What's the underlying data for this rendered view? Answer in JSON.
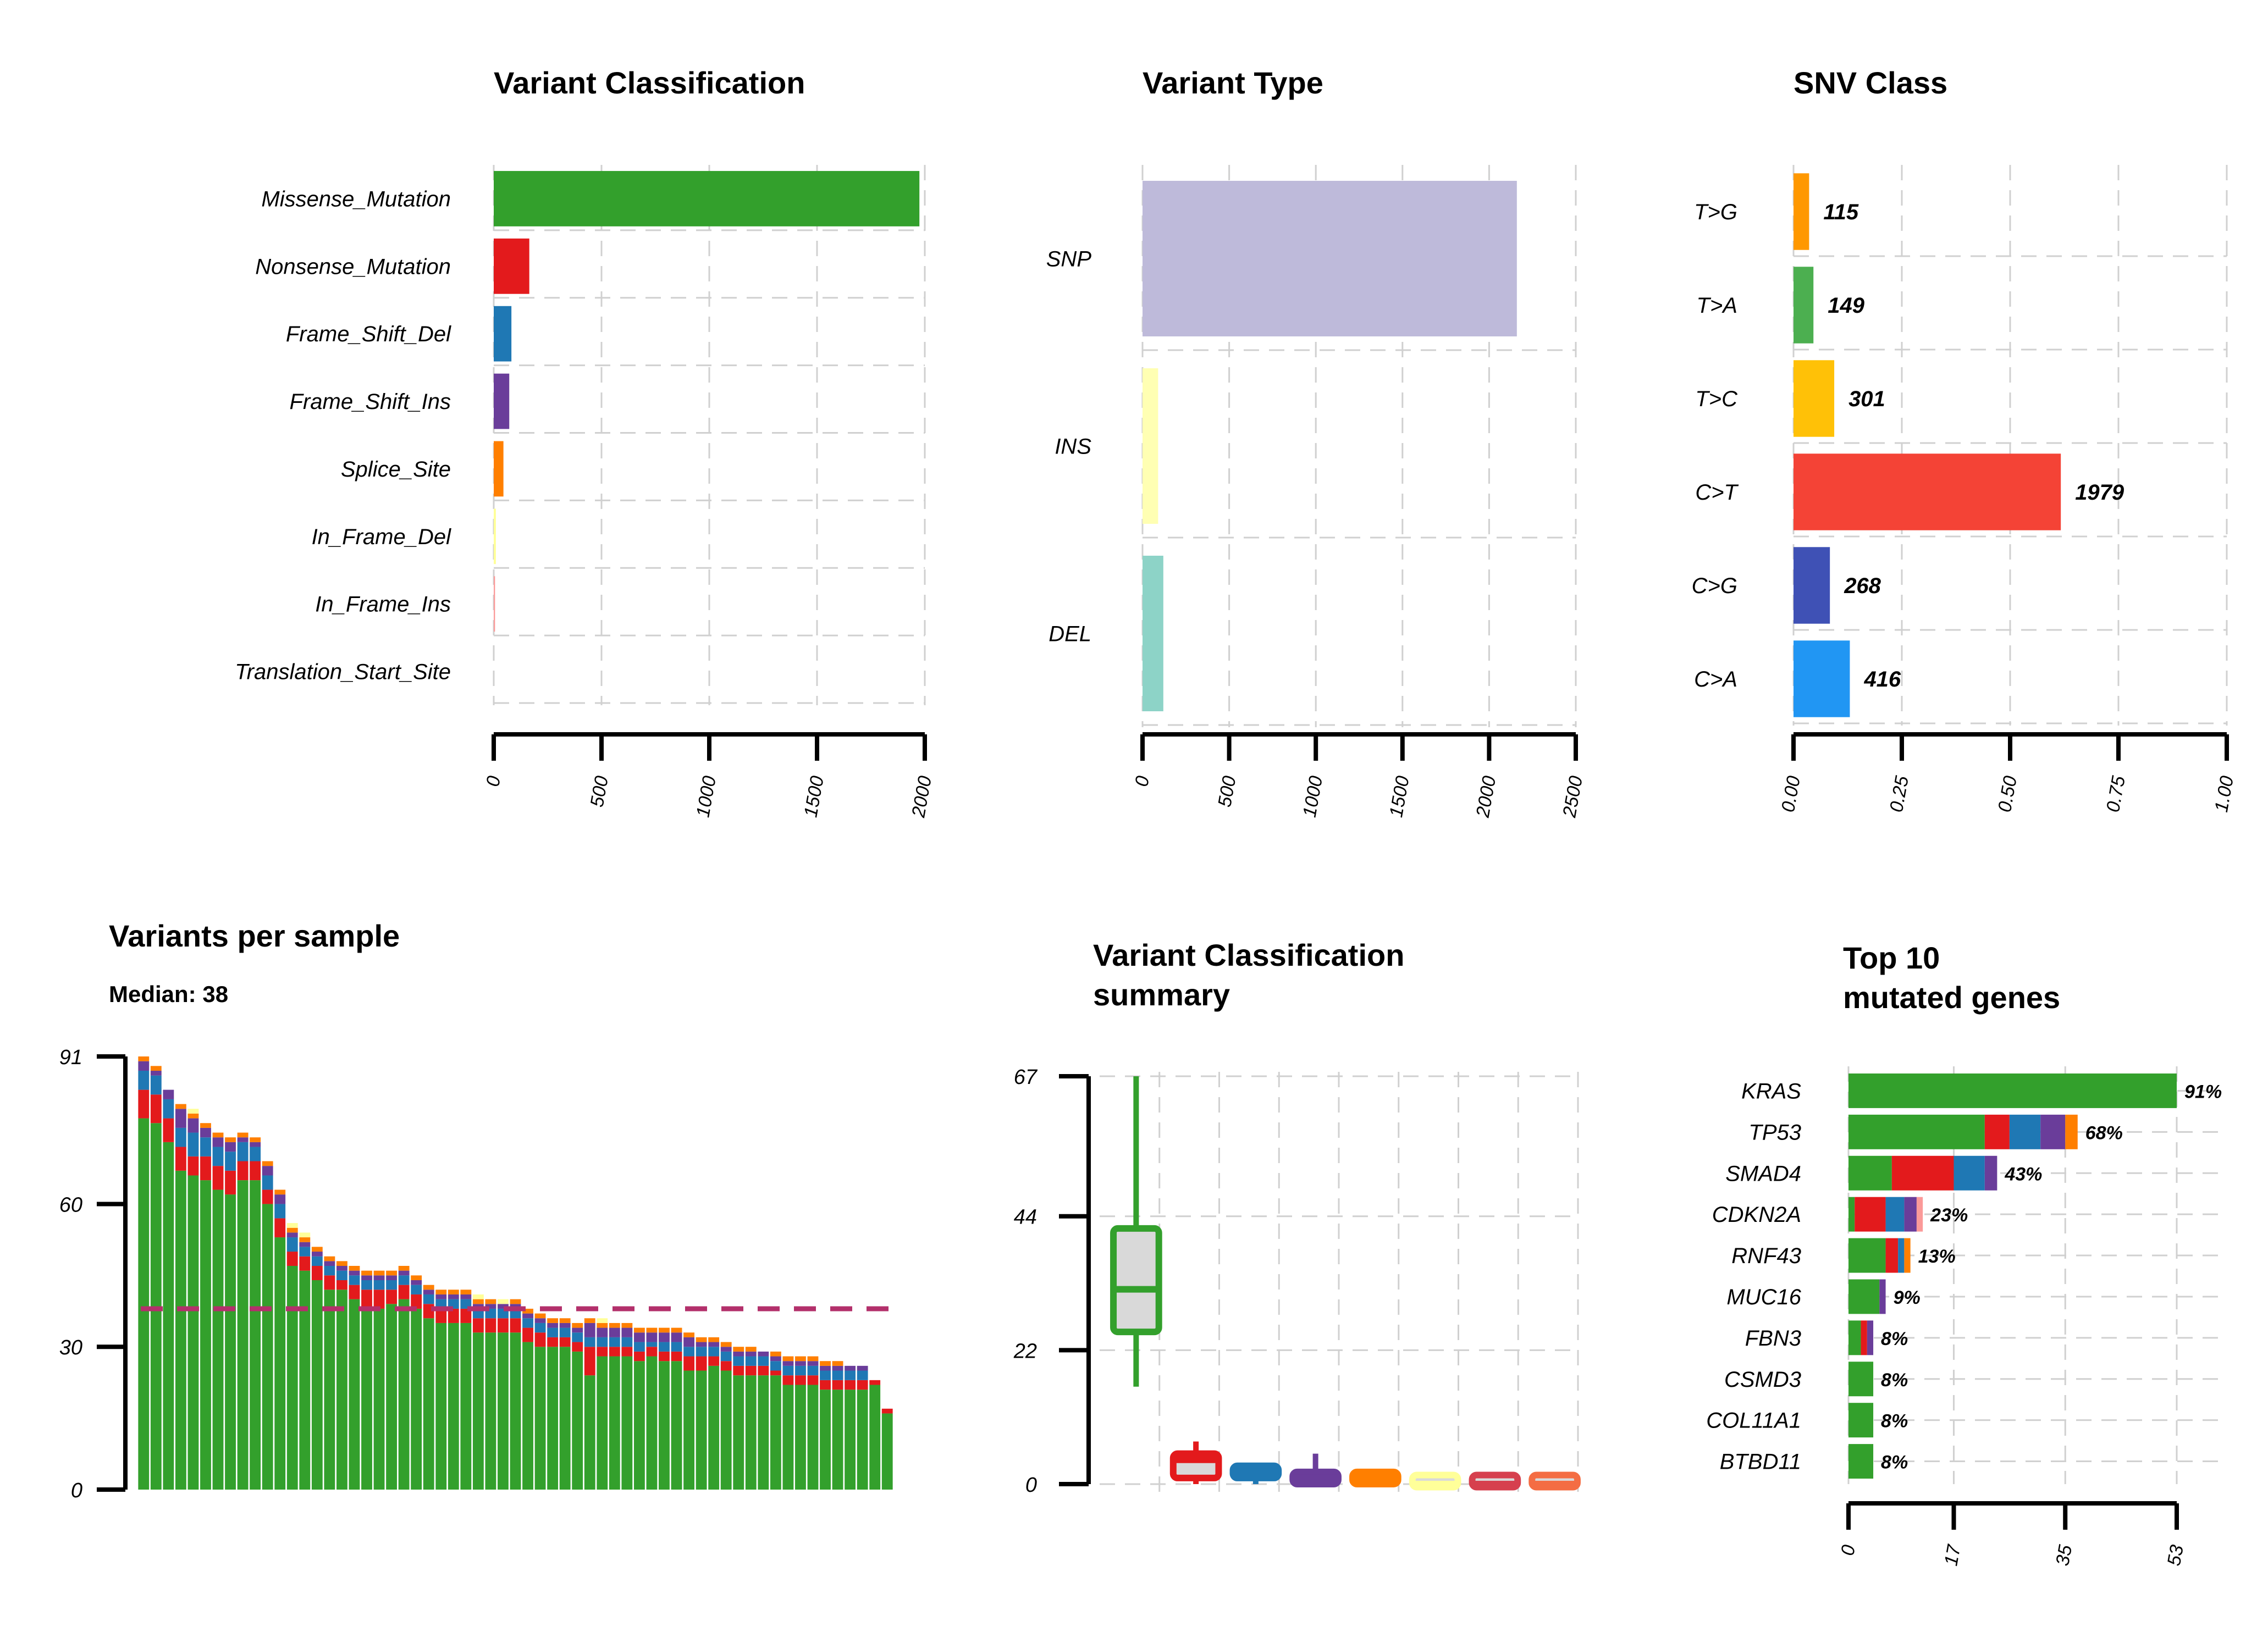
{
  "palette": {
    "Missense_Mutation": "#33a02c",
    "Nonsense_Mutation": "#e31a1c",
    "Frame_Shift_Del": "#1f78b4",
    "Frame_Shift_Ins": "#6a3d9a",
    "Splice_Site": "#ff7f00",
    "In_Frame_Del": "#ffff99",
    "In_Frame_Ins": "#fb9a99",
    "Translation_Start_Site": "#b15928",
    "median_line": "#b3306b",
    "box_fill": "#d9d9d9"
  },
  "chart_data": [
    {
      "id": "variant_classification",
      "type": "bar",
      "orientation": "horizontal",
      "title": "Variant Classification",
      "categories": [
        "Missense_Mutation",
        "Nonsense_Mutation",
        "Frame_Shift_Del",
        "Frame_Shift_Ins",
        "Splice_Site",
        "In_Frame_Del",
        "In_Frame_Ins",
        "Translation_Start_Site"
      ],
      "values": [
        1975,
        165,
        82,
        72,
        45,
        10,
        6,
        0
      ],
      "colors": [
        "#33a02c",
        "#e31a1c",
        "#1f78b4",
        "#6a3d9a",
        "#ff7f00",
        "#ffff99",
        "#fb9a99",
        "#b15928"
      ],
      "xlim": [
        0,
        2000
      ],
      "xticks": [
        "0",
        "500",
        "1000",
        "1500",
        "2000"
      ],
      "grid": true
    },
    {
      "id": "variant_type",
      "type": "bar",
      "orientation": "horizontal",
      "title": "Variant Type",
      "categories": [
        "SNP",
        "INS",
        "DEL"
      ],
      "values": [
        2160,
        90,
        120
      ],
      "colors": [
        "#bebada",
        "#ffffb3",
        "#8dd3c7"
      ],
      "xlim": [
        0,
        2500
      ],
      "xticks": [
        "0",
        "500",
        "1000",
        "1500",
        "2000",
        "2500"
      ],
      "grid": true
    },
    {
      "id": "snv_class",
      "type": "bar",
      "orientation": "horizontal",
      "title": "SNV Class",
      "categories": [
        "T>G",
        "T>A",
        "T>C",
        "C>T",
        "C>G",
        "C>A"
      ],
      "values": [
        0.036,
        0.046,
        0.094,
        0.617,
        0.084,
        0.13
      ],
      "labels": [
        "115",
        "149",
        "301",
        "1979",
        "268",
        "416"
      ],
      "colors": [
        "#ff9800",
        "#4caf50",
        "#ffc107",
        "#f44336",
        "#3f51b5",
        "#2196f3"
      ],
      "xlim": [
        0,
        1
      ],
      "xticks": [
        "0.00",
        "0.25",
        "0.50",
        "0.75",
        "1.00"
      ],
      "grid": true
    },
    {
      "id": "variants_per_sample",
      "type": "bar",
      "stacked": true,
      "title": "Variants per sample",
      "subtitle": "Median: 38",
      "ylim": [
        0,
        91
      ],
      "yticks": [
        "0",
        "30",
        "60",
        "91"
      ],
      "median": 38,
      "series_order": [
        "Missense_Mutation",
        "Nonsense_Mutation",
        "Frame_Shift_Del",
        "Frame_Shift_Ins",
        "Splice_Site",
        "In_Frame_Del",
        "In_Frame_Ins"
      ],
      "samples": [
        [
          78,
          6,
          4,
          2,
          1,
          0,
          0
        ],
        [
          77,
          6,
          4,
          1,
          1,
          0,
          0
        ],
        [
          73,
          5,
          4,
          2,
          0,
          0,
          0
        ],
        [
          67,
          5,
          4,
          4,
          1,
          0,
          0
        ],
        [
          66,
          4,
          5,
          3,
          1,
          1,
          0
        ],
        [
          65,
          5,
          4,
          2,
          1,
          0,
          0
        ],
        [
          63,
          5,
          4,
          2,
          1,
          0,
          0
        ],
        [
          62,
          5,
          4,
          2,
          1,
          0,
          0
        ],
        [
          65,
          4,
          4,
          1,
          1,
          0,
          0
        ],
        [
          65,
          4,
          3,
          1,
          1,
          0,
          0
        ],
        [
          60,
          3,
          3,
          2,
          1,
          0,
          0
        ],
        [
          53,
          4,
          3,
          2,
          1,
          0,
          0
        ],
        [
          47,
          3,
          3,
          1,
          1,
          1,
          0
        ],
        [
          46,
          3,
          2,
          1,
          1,
          1,
          0
        ],
        [
          44,
          3,
          2,
          1,
          1,
          0,
          0
        ],
        [
          42,
          3,
          2,
          1,
          1,
          0,
          0
        ],
        [
          42,
          2,
          2,
          1,
          1,
          0,
          0
        ],
        [
          40,
          3,
          2,
          1,
          1,
          0,
          0
        ],
        [
          38,
          4,
          2,
          1,
          1,
          0,
          0
        ],
        [
          38,
          4,
          2,
          1,
          1,
          0,
          0
        ],
        [
          39,
          3,
          2,
          1,
          1,
          0,
          0
        ],
        [
          40,
          3,
          2,
          1,
          1,
          0,
          0
        ],
        [
          38,
          3,
          2,
          1,
          1,
          0,
          0
        ],
        [
          36,
          3,
          2,
          1,
          1,
          0,
          0
        ],
        [
          35,
          3,
          2,
          1,
          1,
          0,
          0
        ],
        [
          35,
          3,
          2,
          1,
          1,
          0,
          0
        ],
        [
          35,
          3,
          2,
          1,
          1,
          0,
          0
        ],
        [
          33,
          3,
          2,
          1,
          1,
          1,
          0
        ],
        [
          33,
          3,
          2,
          1,
          1,
          0,
          0
        ],
        [
          33,
          3,
          2,
          1,
          0,
          1,
          0
        ],
        [
          33,
          3,
          2,
          1,
          1,
          0,
          0
        ],
        [
          31,
          3,
          2,
          1,
          1,
          0,
          0
        ],
        [
          30,
          3,
          2,
          1,
          1,
          0,
          0
        ],
        [
          30,
          2,
          2,
          1,
          1,
          0,
          0
        ],
        [
          30,
          2,
          2,
          1,
          1,
          0,
          0
        ],
        [
          29,
          2,
          2,
          1,
          1,
          0,
          0
        ],
        [
          24,
          6,
          2,
          3,
          1,
          0,
          0
        ],
        [
          28,
          2,
          2,
          2,
          1,
          1,
          0
        ],
        [
          28,
          2,
          2,
          2,
          1,
          0,
          0
        ],
        [
          28,
          2,
          2,
          2,
          1,
          0,
          0
        ],
        [
          27,
          2,
          2,
          2,
          1,
          0,
          0
        ],
        [
          28,
          2,
          1,
          2,
          1,
          0,
          0
        ],
        [
          27,
          2,
          2,
          2,
          1,
          0,
          0
        ],
        [
          27,
          2,
          2,
          2,
          1,
          0,
          0
        ],
        [
          25,
          3,
          2,
          2,
          1,
          0,
          0
        ],
        [
          25,
          3,
          2,
          1,
          1,
          0,
          0
        ],
        [
          26,
          2,
          2,
          1,
          1,
          0,
          0
        ],
        [
          25,
          2,
          2,
          1,
          1,
          0,
          0
        ],
        [
          24,
          2,
          2,
          1,
          1,
          0,
          0
        ],
        [
          24,
          2,
          2,
          1,
          1,
          0,
          0
        ],
        [
          24,
          2,
          2,
          1,
          0,
          0,
          0
        ],
        [
          24,
          1,
          2,
          1,
          1,
          0,
          0
        ],
        [
          22,
          2,
          2,
          1,
          1,
          0,
          0
        ],
        [
          22,
          2,
          2,
          1,
          1,
          0,
          0
        ],
        [
          22,
          2,
          2,
          1,
          1,
          0,
          0
        ],
        [
          21,
          2,
          2,
          1,
          1,
          0,
          0
        ],
        [
          21,
          2,
          2,
          1,
          1,
          0,
          0
        ],
        [
          21,
          2,
          2,
          1,
          0,
          0,
          0
        ],
        [
          21,
          2,
          2,
          1,
          0,
          0,
          0
        ],
        [
          22,
          1,
          0,
          0,
          0,
          0,
          0
        ],
        [
          16,
          1,
          0,
          0,
          0,
          0,
          0
        ]
      ]
    },
    {
      "id": "variant_classification_summary",
      "type": "box",
      "title": "Variant Classification\nsummary",
      "ylim": [
        0,
        67
      ],
      "yticks": [
        "0",
        "22",
        "44",
        "67"
      ],
      "boxes": [
        {
          "category": "Missense_Mutation",
          "min": 16,
          "q1": 25,
          "median": 32,
          "q3": 42,
          "max": 67,
          "color": "#33a02c"
        },
        {
          "category": "Nonsense_Mutation",
          "min": 0,
          "q1": 1,
          "median": 4,
          "q3": 5,
          "max": 7,
          "color": "#e31a1c"
        },
        {
          "category": "Frame_Shift_Del",
          "min": 0,
          "q1": 1,
          "median": 2,
          "q3": 3,
          "max": 3,
          "color": "#1f78b4"
        },
        {
          "category": "Frame_Shift_Ins",
          "min": 0,
          "q1": 0,
          "median": 1,
          "q3": 2,
          "max": 5,
          "color": "#6a3d9a"
        },
        {
          "category": "Splice_Site",
          "min": 0,
          "q1": 0,
          "median": 1,
          "q3": 2,
          "max": 2,
          "color": "#ff7f00"
        },
        {
          "category": "In_Frame_Del",
          "min": 0,
          "q1": 0,
          "median": 0,
          "q3": 1,
          "max": 1,
          "color": "#ffff99"
        },
        {
          "category": "In_Frame_Ins",
          "min": 0,
          "q1": 0,
          "median": 0,
          "q3": 1,
          "max": 1,
          "color": "#d6404e"
        },
        {
          "category": "Translation_Start_Site",
          "min": 0,
          "q1": 0,
          "median": 0,
          "q3": 1,
          "max": 1,
          "color": "#f46d43"
        }
      ]
    },
    {
      "id": "top10_mutated_genes",
      "type": "bar",
      "orientation": "horizontal",
      "stacked": true,
      "title": "Top 10\nmutated genes",
      "xlim": [
        0,
        53
      ],
      "xticks": [
        "0",
        "17",
        "35",
        "53"
      ],
      "series_order": [
        "Missense_Mutation",
        "Nonsense_Mutation",
        "Frame_Shift_Del",
        "Frame_Shift_Ins",
        "Splice_Site",
        "In_Frame_Del",
        "In_Frame_Ins"
      ],
      "genes": [
        {
          "gene": "KRAS",
          "pct": "91%",
          "counts": [
            53,
            0,
            0,
            0,
            0,
            0,
            0
          ]
        },
        {
          "gene": "TP53",
          "pct": "68%",
          "counts": [
            22,
            4,
            5,
            4,
            2,
            0,
            0
          ]
        },
        {
          "gene": "SMAD4",
          "pct": "43%",
          "counts": [
            7,
            10,
            5,
            2,
            0,
            0,
            0
          ]
        },
        {
          "gene": "CDKN2A",
          "pct": "23%",
          "counts": [
            1,
            5,
            3,
            2,
            0,
            0,
            1
          ]
        },
        {
          "gene": "RNF43",
          "pct": "13%",
          "counts": [
            6,
            2,
            1,
            0,
            1,
            0,
            0
          ]
        },
        {
          "gene": "MUC16",
          "pct": "9%",
          "counts": [
            5,
            0,
            0,
            1,
            0,
            0,
            0
          ]
        },
        {
          "gene": "FBN3",
          "pct": "8%",
          "counts": [
            2,
            1,
            0,
            1,
            0,
            0,
            0
          ]
        },
        {
          "gene": "CSMD3",
          "pct": "8%",
          "counts": [
            4,
            0,
            0,
            0,
            0,
            0,
            0
          ]
        },
        {
          "gene": "COL11A1",
          "pct": "8%",
          "counts": [
            4,
            0,
            0,
            0,
            0,
            0,
            0
          ]
        },
        {
          "gene": "BTBD11",
          "pct": "8%",
          "counts": [
            4,
            0,
            0,
            0,
            0,
            0,
            0
          ]
        }
      ]
    }
  ]
}
